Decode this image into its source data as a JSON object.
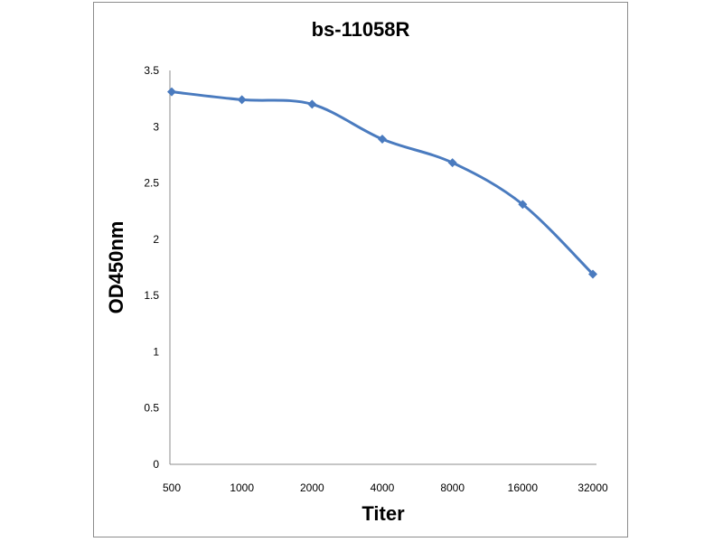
{
  "chart_data": {
    "type": "line",
    "title": "bs-11058R",
    "xlabel": "Titer",
    "ylabel": "OD450nm",
    "categories": [
      "500",
      "1000",
      "2000",
      "4000",
      "8000",
      "16000",
      "32000"
    ],
    "series": [
      {
        "values": [
          3.31,
          3.24,
          3.2,
          2.89,
          2.68,
          2.31,
          1.69
        ],
        "color": "#4a7bbf",
        "marker": "diamond"
      }
    ],
    "ylim": [
      0,
      3.5
    ],
    "yticks": [
      0,
      0.5,
      1,
      1.5,
      2,
      2.5,
      3,
      3.5
    ],
    "ytick_labels": [
      "0",
      "0.5",
      "1",
      "1.5",
      "2",
      "2.5",
      "3",
      "3.5"
    ],
    "grid": false,
    "legend": "none"
  }
}
